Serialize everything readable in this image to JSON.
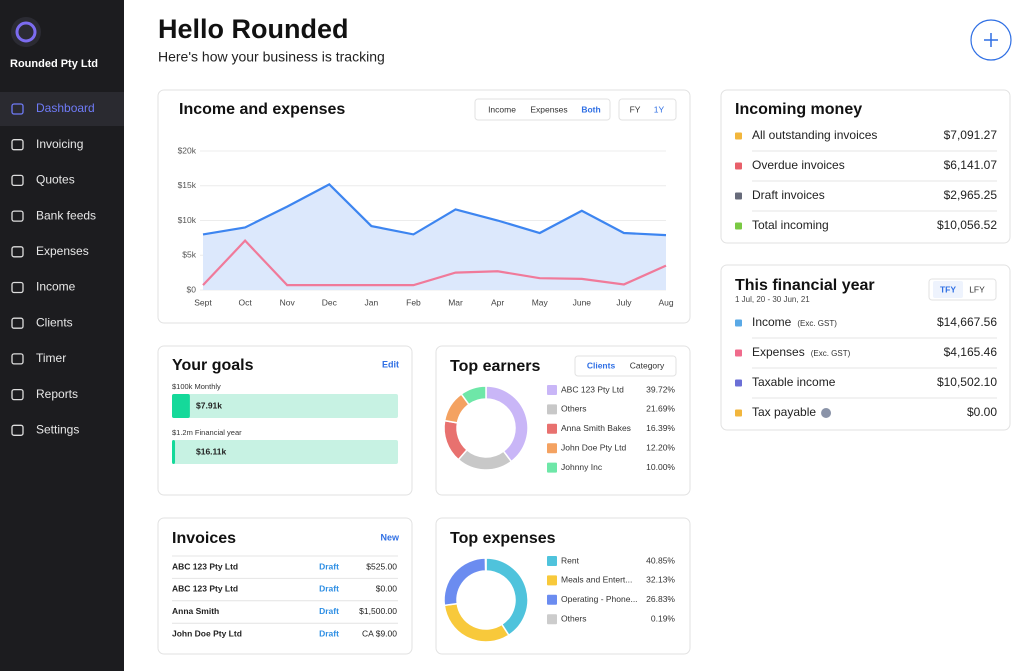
{
  "sidebar": {
    "company": "Rounded Pty Ltd",
    "nav": [
      "Dashboard",
      "Invoicing",
      "Quotes",
      "Bank feeds",
      "Expenses",
      "Income",
      "Clients",
      "Timer",
      "Reports",
      "Settings"
    ],
    "active": 0
  },
  "header": {
    "title": "Hello Rounded",
    "subtitle": "Here's how your business is tracking"
  },
  "income_expenses": {
    "type": "area",
    "title": "Income and expenses",
    "filters": [
      "Income",
      "Expenses",
      "Both"
    ],
    "active_filter": 2,
    "periods": [
      "FY",
      "1Y"
    ],
    "active_period": 1,
    "categories": [
      "Sept",
      "Oct",
      "Nov",
      "Dec",
      "Jan",
      "Feb",
      "Mar",
      "Apr",
      "May",
      "June",
      "July",
      "Aug"
    ],
    "ylim": [
      0,
      20000
    ],
    "yticks": [
      {
        "value": 0,
        "label": "$0"
      },
      {
        "value": 5000,
        "label": "$5k"
      },
      {
        "value": 10000,
        "label": "$10k"
      },
      {
        "value": 15000,
        "label": "$15k"
      },
      {
        "value": 20000,
        "label": "$20k"
      }
    ],
    "grid": true,
    "series": [
      {
        "color": "#3d85f0",
        "fill": "#dce8fc",
        "values": [
          8000,
          9000,
          12000,
          15200,
          9200,
          8000,
          11600,
          10000,
          8200,
          11400,
          8200,
          7900
        ]
      },
      {
        "color": "#f07a9a",
        "values": [
          700,
          7100,
          700,
          700,
          700,
          700,
          2500,
          2700,
          1700,
          1600,
          800,
          3500
        ]
      }
    ]
  },
  "incoming_money": {
    "title": "Incoming money",
    "rows": [
      {
        "label": "All outstanding invoices",
        "amount": "$7,091.27",
        "color": "#f2b63c"
      },
      {
        "label": "Overdue invoices",
        "amount": "$6,141.07",
        "color": "#e8606a"
      },
      {
        "label": "Draft invoices",
        "amount": "$2,965.25",
        "color": "#676b7a"
      },
      {
        "label": "Total incoming",
        "amount": "$10,056.52",
        "color": "#7ac943"
      }
    ]
  },
  "financial_year": {
    "title": "This financial year",
    "subtitle": "1 Jul, 20 - 30 Jun, 21",
    "periods": [
      "TFY",
      "LFY"
    ],
    "active_period": 0,
    "rows": [
      {
        "label": "Income",
        "note": "(Exc. GST)",
        "amount": "$14,667.56",
        "color": "#5aa9e6"
      },
      {
        "label": "Expenses",
        "note": "(Exc. GST)",
        "amount": "$4,165.46",
        "color": "#f06b8c"
      },
      {
        "label": "Taxable income",
        "amount": "$10,502.10",
        "color": "#6b6fd6"
      },
      {
        "label": "Tax payable",
        "amount": "$0.00",
        "color": "#f2b63c",
        "help": true
      }
    ]
  },
  "goals": {
    "title": "Your goals",
    "action": "Edit",
    "items": [
      {
        "label": "$100k Monthly",
        "value": 7910,
        "value_label": "$7.91k",
        "target": 100000
      },
      {
        "label": "$1.2m Financial year",
        "value": 16110,
        "value_label": "$16.11k",
        "target": 1200000
      }
    ]
  },
  "top_earners": {
    "type": "donut",
    "title": "Top earners",
    "filters": [
      "Clients",
      "Category"
    ],
    "active_filter": 0,
    "categories": [
      "ABC 123 Pty Ltd",
      "Others",
      "Anna Smith Bakes",
      "John Doe Pty Ltd",
      "Johnny Inc"
    ],
    "values": [
      39.72,
      21.69,
      16.39,
      12.2,
      10
    ],
    "value_labels": [
      "39.72%",
      "21.69%",
      "16.39%",
      "12.20%",
      "10.00%"
    ],
    "colors": [
      "#c9b6f7",
      "#c8c8c8",
      "#e8716f",
      "#f4a261",
      "#6ee7a8"
    ]
  },
  "invoices": {
    "title": "Invoices",
    "action": "New",
    "rows": [
      [
        "ABC 123 Pty Ltd",
        "Draft",
        "$525.00"
      ],
      [
        "ABC 123 Pty Ltd",
        "Draft",
        "$0.00"
      ],
      [
        "Anna Smith",
        "Draft",
        "$1,500.00"
      ],
      [
        "John Doe Pty Ltd",
        "Draft",
        "CA $9.00"
      ]
    ]
  },
  "top_expenses": {
    "type": "donut",
    "title": "Top expenses",
    "categories": [
      "Rent",
      "Meals and Entert...",
      "Operating - Phone...",
      "Others"
    ],
    "values": [
      40.85,
      32.13,
      26.83,
      0.19
    ],
    "value_labels": [
      "40.85%",
      "32.13%",
      "26.83%",
      "0.19%"
    ],
    "colors": [
      "#4fc3dc",
      "#f8c93b",
      "#6b8cf0",
      "#cccccc"
    ]
  }
}
